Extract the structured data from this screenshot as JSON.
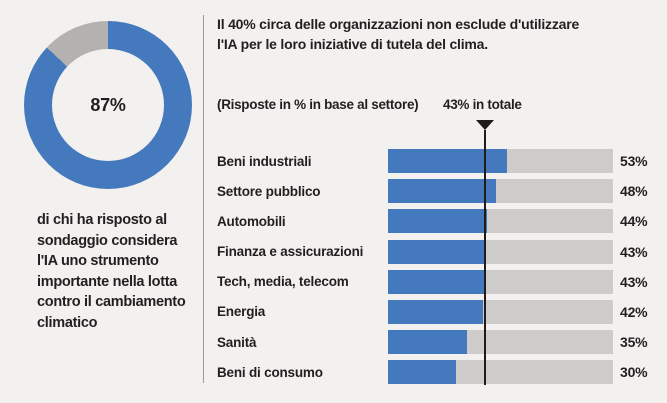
{
  "colors": {
    "background": "#f2f1ef",
    "bar_blue": "#4579bd",
    "track_gray": "#cdccca",
    "donut_gray": "#b3b2b1",
    "text_dark": "#231f20",
    "divider_gray": "#9a9a9a",
    "marker_black": "#1f1b18"
  },
  "left_panel": {
    "caption_lines": [
      "di chi ha risposto al",
      "sondaggio considera",
      "l'IA uno strumento",
      "importante nella lotta",
      "contro il cambiamento",
      "climatico"
    ]
  },
  "right_panel": {
    "headline_lines": [
      "Il 40% circa delle organizzazioni non esclude d'utilizzare",
      "l'IA per le loro iniziative di tutela del clima."
    ]
  },
  "chart_data": [
    {
      "type": "pie",
      "subtype": "donut",
      "center_label": "87%",
      "slices": [
        {
          "label": "87%",
          "value": 87,
          "color_key": "bar_blue"
        },
        {
          "label": "",
          "value": 13,
          "color_key": "donut_gray"
        }
      ]
    },
    {
      "type": "bar",
      "orientation": "horizontal",
      "note": "(Risposte in % in base al settore)",
      "categories": [
        "Beni industriali",
        "Settore pubblico",
        "Automobili",
        "Finanza e assicurazioni",
        "Tech, media, telecom",
        "Energia",
        "Sanità",
        "Beni di consumo"
      ],
      "values": [
        53,
        48,
        44,
        43,
        43,
        42,
        35,
        30
      ],
      "value_labels": [
        "53%",
        "48%",
        "44%",
        "43%",
        "43%",
        "42%",
        "35%",
        "30%"
      ],
      "xlim": [
        0,
        100
      ],
      "grid": false,
      "legend": false,
      "reference_line": {
        "value": 43,
        "label": "43% in totale"
      }
    }
  ]
}
